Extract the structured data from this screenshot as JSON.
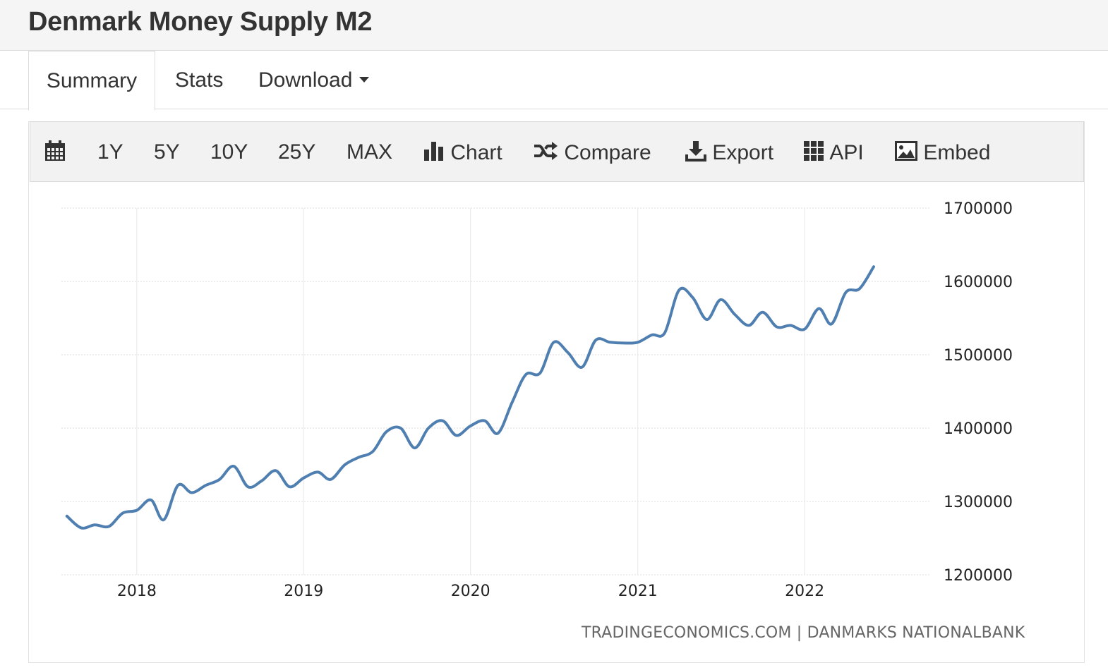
{
  "page": {
    "title": "Denmark Money Supply M2"
  },
  "tabs": {
    "summary": "Summary",
    "stats": "Stats",
    "download": "Download"
  },
  "toolbar": {
    "calendar_icon": "calendar-icon",
    "ranges": [
      "1Y",
      "5Y",
      "10Y",
      "25Y",
      "MAX"
    ],
    "chart": "Chart",
    "compare": "Compare",
    "export": "Export",
    "api": "API",
    "embed": "Embed"
  },
  "colors": {
    "line": "#4f7fb0",
    "grid": "#dddddd",
    "toolbar_bg": "#f2f2f2"
  },
  "chart_data": {
    "type": "line",
    "title": "",
    "xlabel": "",
    "ylabel": "",
    "x_ticks": [
      "2018",
      "2019",
      "2020",
      "2021",
      "2022"
    ],
    "y_ticks": [
      "1700000",
      "1600000",
      "1500000",
      "1400000",
      "1300000",
      "1200000"
    ],
    "ylim": [
      1200000,
      1700000
    ],
    "xlim": [
      "2017-07-20",
      "2022-10-01"
    ],
    "grid": true,
    "legend": "none",
    "source": "TRADINGECONOMICS.COM | DANMARKS NATIONALBANK",
    "series": [
      {
        "x": [
          "2017-08",
          "2017-09",
          "2017-10",
          "2017-11",
          "2017-12",
          "2018-01",
          "2018-02",
          "2018-03",
          "2018-04",
          "2018-05",
          "2018-06",
          "2018-07",
          "2018-08",
          "2018-09",
          "2018-10",
          "2018-11",
          "2018-12",
          "2019-01",
          "2019-02",
          "2019-03",
          "2019-04",
          "2019-05",
          "2019-06",
          "2019-07",
          "2019-08",
          "2019-09",
          "2019-10",
          "2019-11",
          "2019-12",
          "2020-01",
          "2020-02",
          "2020-03",
          "2020-04",
          "2020-05",
          "2020-06",
          "2020-07",
          "2020-08",
          "2020-09",
          "2020-10",
          "2020-11",
          "2020-12",
          "2021-01",
          "2021-02",
          "2021-03",
          "2021-04",
          "2021-05",
          "2021-06",
          "2021-07",
          "2021-08",
          "2021-09",
          "2021-10",
          "2021-11",
          "2021-12",
          "2022-01",
          "2022-02",
          "2022-03",
          "2022-04",
          "2022-05",
          "2022-06"
        ],
        "values": [
          1280000,
          1264000,
          1268000,
          1266000,
          1284000,
          1288000,
          1302000,
          1275000,
          1322000,
          1312000,
          1322000,
          1330000,
          1348000,
          1320000,
          1328000,
          1342000,
          1320000,
          1332000,
          1340000,
          1330000,
          1350000,
          1360000,
          1368000,
          1395000,
          1400000,
          1373000,
          1400000,
          1410000,
          1390000,
          1403000,
          1410000,
          1393000,
          1435000,
          1473000,
          1475000,
          1517000,
          1503000,
          1483000,
          1520000,
          1517000,
          1516000,
          1517000,
          1527000,
          1530000,
          1588000,
          1578000,
          1548000,
          1575000,
          1555000,
          1540000,
          1558000,
          1538000,
          1540000,
          1535000,
          1563000,
          1542000,
          1585000,
          1590000,
          1620000
        ]
      }
    ]
  }
}
